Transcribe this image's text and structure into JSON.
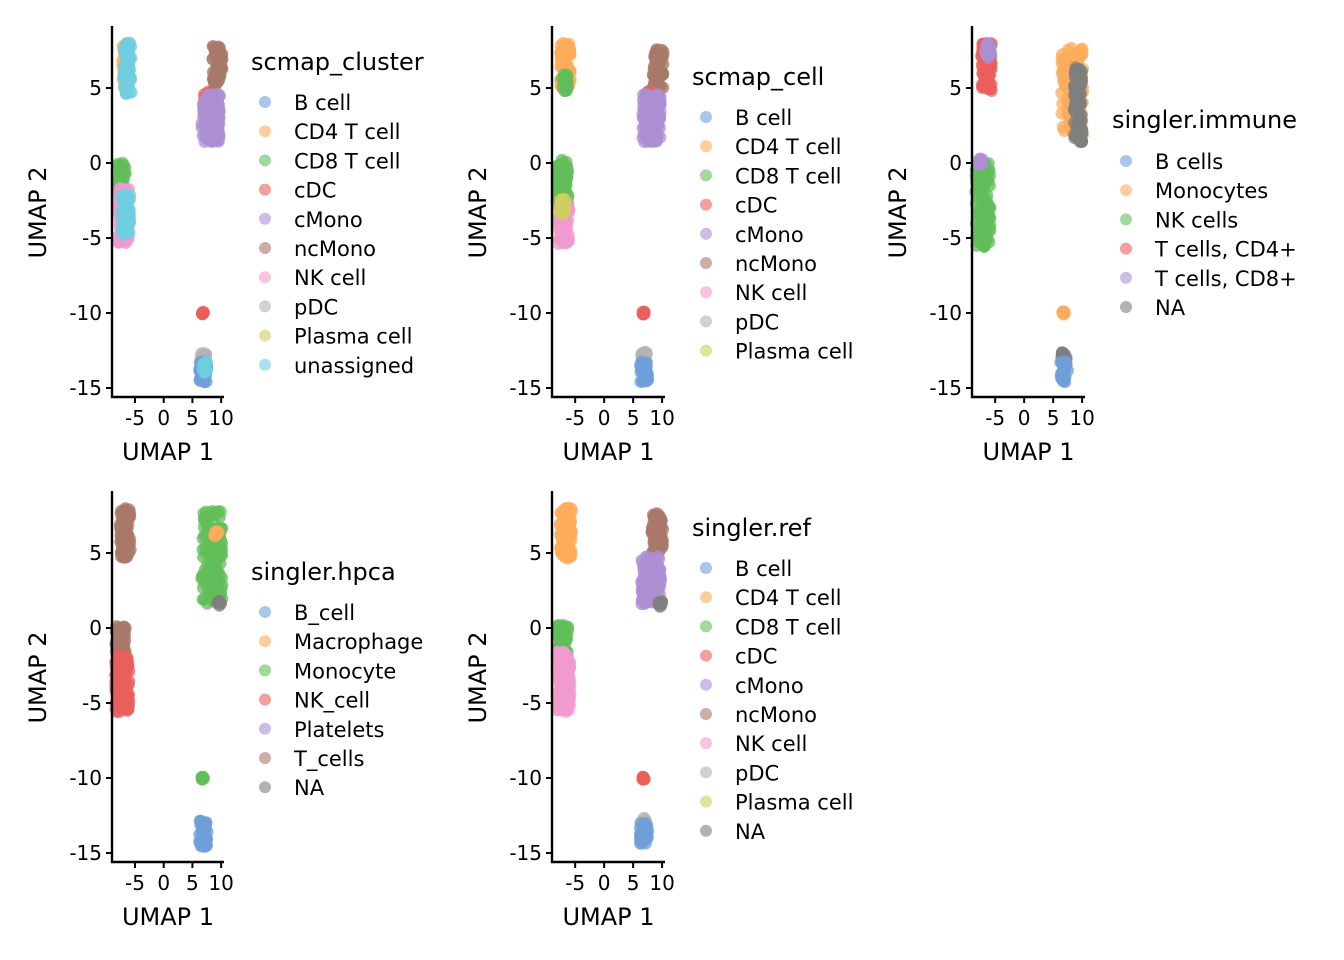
{
  "colors": {
    "blue": "#6f9fd8",
    "orange": "#fdab5b",
    "green": "#62be59",
    "red": "#ea5f5c",
    "purple": "#ac8fd3",
    "brown": "#a8786a",
    "pink": "#f09bcd",
    "gray": "#b3b3b3",
    "olive": "#cfcf5f",
    "cyan": "#6fcde0",
    "darkgray": "#7f7f7f"
  },
  "chart_data": [
    {
      "type": "scatter",
      "xlabel": "UMAP 1",
      "ylabel": "UMAP 2",
      "xlim": [
        -9,
        10.5
      ],
      "ylim": [
        -15.6,
        9
      ],
      "xticks": [
        {
          "v": -5,
          "label": "-5"
        },
        {
          "v": 0,
          "label": "0"
        },
        {
          "v": 5,
          "label": "5"
        },
        {
          "v": 10,
          "label": "10"
        }
      ],
      "yticks": [
        {
          "v": 5,
          "label": "5"
        },
        {
          "v": 0,
          "label": "0"
        },
        {
          "v": -5,
          "label": "-5"
        },
        {
          "v": -10,
          "label": "-10"
        },
        {
          "v": -15,
          "label": "-15"
        }
      ],
      "legend_title": "scmap_cluster",
      "legend": [
        {
          "label": "B cell",
          "color": "blue"
        },
        {
          "label": "CD4 T cell",
          "color": "orange"
        },
        {
          "label": "CD8 T cell",
          "color": "green"
        },
        {
          "label": "cDC",
          "color": "red"
        },
        {
          "label": "cMono",
          "color": "purple"
        },
        {
          "label": "ncMono",
          "color": "brown"
        },
        {
          "label": "NK cell",
          "color": "pink"
        },
        {
          "label": "pDC",
          "color": "gray"
        },
        {
          "label": "Plasma cell",
          "color": "olive"
        },
        {
          "label": "unassigned",
          "color": "cyan"
        }
      ],
      "clusters": [
        {
          "color": "orange",
          "x": [
            -7.2,
            -6.0
          ],
          "y": [
            4.8,
            8.0
          ]
        },
        {
          "color": "cyan",
          "x": [
            -7.0,
            -5.6
          ],
          "y": [
            4.6,
            8.0
          ]
        },
        {
          "color": "brown",
          "x": [
            8.5,
            10.2
          ],
          "y": [
            5.2,
            7.8
          ]
        },
        {
          "color": "red",
          "x": [
            7.0,
            9.0
          ],
          "y": [
            3.3,
            4.8
          ]
        },
        {
          "color": "purple",
          "x": [
            6.6,
            9.8
          ],
          "y": [
            1.4,
            4.6
          ]
        },
        {
          "color": "green",
          "x": [
            -8.0,
            -6.6
          ],
          "y": [
            -3.0,
            0.2
          ]
        },
        {
          "color": "pink",
          "x": [
            -8.0,
            -6.0
          ],
          "y": [
            -5.4,
            -1.6
          ]
        },
        {
          "color": "cyan",
          "x": [
            -7.4,
            -5.8
          ],
          "y": [
            -4.8,
            -2.0
          ]
        },
        {
          "color": "red",
          "x": [
            6.5,
            7.0
          ],
          "y": [
            -10.1,
            -9.9
          ]
        },
        {
          "color": "gray",
          "x": [
            6.4,
            7.4
          ],
          "y": [
            -13.4,
            -12.6
          ]
        },
        {
          "color": "blue",
          "x": [
            6.2,
            7.6
          ],
          "y": [
            -14.6,
            -13.2
          ]
        },
        {
          "color": "cyan",
          "x": [
            6.6,
            7.6
          ],
          "y": [
            -14.0,
            -13.2
          ]
        }
      ]
    },
    {
      "type": "scatter",
      "xlabel": "UMAP 1",
      "ylabel": "UMAP 2",
      "xlim": [
        -9,
        10.5
      ],
      "ylim": [
        -15.6,
        9
      ],
      "xticks": [
        {
          "v": -5,
          "label": "-5"
        },
        {
          "v": 0,
          "label": "0"
        },
        {
          "v": 5,
          "label": "5"
        },
        {
          "v": 10,
          "label": "10"
        }
      ],
      "yticks": [
        {
          "v": 5,
          "label": "5"
        },
        {
          "v": 0,
          "label": "0"
        },
        {
          "v": -5,
          "label": "-5"
        },
        {
          "v": -10,
          "label": "-10"
        },
        {
          "v": -15,
          "label": "-15"
        }
      ],
      "legend_title": "scmap_cell",
      "legend": [
        {
          "label": "B cell",
          "color": "blue"
        },
        {
          "label": "CD4 T cell",
          "color": "orange"
        },
        {
          "label": "CD8 T cell",
          "color": "green"
        },
        {
          "label": "cDC",
          "color": "red"
        },
        {
          "label": "cMono",
          "color": "purple"
        },
        {
          "label": "ncMono",
          "color": "brown"
        },
        {
          "label": "NK cell",
          "color": "pink"
        },
        {
          "label": "pDC",
          "color": "gray"
        },
        {
          "label": "Plasma cell",
          "color": "olive"
        }
      ],
      "clusters": [
        {
          "color": "orange",
          "x": [
            -7.6,
            -5.8
          ],
          "y": [
            5.0,
            8.0
          ]
        },
        {
          "color": "green",
          "x": [
            -7.4,
            -6.2
          ],
          "y": [
            4.8,
            6.0
          ]
        },
        {
          "color": "brown",
          "x": [
            8.4,
            10.2
          ],
          "y": [
            5.0,
            7.8
          ]
        },
        {
          "color": "red",
          "x": [
            7.2,
            8.6
          ],
          "y": [
            3.8,
            4.8
          ]
        },
        {
          "color": "purple",
          "x": [
            6.6,
            9.8
          ],
          "y": [
            1.4,
            4.6
          ]
        },
        {
          "color": "green",
          "x": [
            -8.2,
            -6.2
          ],
          "y": [
            -3.0,
            0.2
          ]
        },
        {
          "color": "pink",
          "x": [
            -8.0,
            -6.0
          ],
          "y": [
            -5.4,
            -2.6
          ]
        },
        {
          "color": "olive",
          "x": [
            -7.6,
            -6.6
          ],
          "y": [
            -3.4,
            -2.4
          ]
        },
        {
          "color": "red",
          "x": [
            6.6,
            7.0
          ],
          "y": [
            -10.1,
            -9.9
          ]
        },
        {
          "color": "gray",
          "x": [
            6.4,
            7.4
          ],
          "y": [
            -13.4,
            -12.6
          ]
        },
        {
          "color": "blue",
          "x": [
            6.2,
            7.6
          ],
          "y": [
            -14.6,
            -13.2
          ]
        }
      ]
    },
    {
      "type": "scatter",
      "xlabel": "UMAP 1",
      "ylabel": "UMAP 2",
      "xlim": [
        -9,
        10.5
      ],
      "ylim": [
        -15.6,
        9
      ],
      "xticks": [
        {
          "v": -5,
          "label": "-5"
        },
        {
          "v": 0,
          "label": "0"
        },
        {
          "v": 5,
          "label": "5"
        },
        {
          "v": 10,
          "label": "10"
        }
      ],
      "yticks": [
        {
          "v": 5,
          "label": "5"
        },
        {
          "v": 0,
          "label": "0"
        },
        {
          "v": -5,
          "label": "-5"
        },
        {
          "v": -10,
          "label": "-10"
        },
        {
          "v": -15,
          "label": "-15"
        }
      ],
      "legend_title": "singler.immune",
      "legend": [
        {
          "label": "B cells",
          "color": "blue"
        },
        {
          "label": "Monocytes",
          "color": "orange"
        },
        {
          "label": "NK cells",
          "color": "green"
        },
        {
          "label": "T cells, CD4+",
          "color": "red"
        },
        {
          "label": "T cells, CD8+",
          "color": "purple"
        },
        {
          "label": "NA",
          "color": "darkgray"
        }
      ],
      "clusters": [
        {
          "color": "red",
          "x": [
            -7.4,
            -5.6
          ],
          "y": [
            4.8,
            8.0
          ]
        },
        {
          "color": "purple",
          "x": [
            -6.8,
            -5.8
          ],
          "y": [
            7.0,
            8.0
          ]
        },
        {
          "color": "orange",
          "x": [
            6.4,
            10.2
          ],
          "y": [
            1.6,
            7.8
          ]
        },
        {
          "color": "darkgray",
          "x": [
            8.6,
            10.0
          ],
          "y": [
            1.4,
            6.4
          ]
        },
        {
          "color": "green",
          "x": [
            -8.4,
            -5.8
          ],
          "y": [
            -5.6,
            0.0
          ]
        },
        {
          "color": "purple",
          "x": [
            -8.0,
            -7.2
          ],
          "y": [
            -0.2,
            0.4
          ]
        },
        {
          "color": "orange",
          "x": [
            6.6,
            7.0
          ],
          "y": [
            -10.1,
            -9.9
          ]
        },
        {
          "color": "darkgray",
          "x": [
            6.4,
            7.4
          ],
          "y": [
            -13.4,
            -12.6
          ]
        },
        {
          "color": "blue",
          "x": [
            6.2,
            7.6
          ],
          "y": [
            -14.6,
            -13.2
          ]
        }
      ]
    },
    {
      "type": "scatter",
      "xlabel": "UMAP 1",
      "ylabel": "UMAP 2",
      "xlim": [
        -9,
        10.5
      ],
      "ylim": [
        -15.6,
        9
      ],
      "xticks": [
        {
          "v": -5,
          "label": "-5"
        },
        {
          "v": 0,
          "label": "0"
        },
        {
          "v": 5,
          "label": "5"
        },
        {
          "v": 10,
          "label": "10"
        }
      ],
      "yticks": [
        {
          "v": 5,
          "label": "5"
        },
        {
          "v": 0,
          "label": "0"
        },
        {
          "v": -5,
          "label": "-5"
        },
        {
          "v": -10,
          "label": "-10"
        },
        {
          "v": -15,
          "label": "-15"
        }
      ],
      "legend_title": "singler.hpca",
      "legend": [
        {
          "label": "B_cell",
          "color": "blue"
        },
        {
          "label": "Macrophage",
          "color": "orange"
        },
        {
          "label": "Monocyte",
          "color": "green"
        },
        {
          "label": "NK_cell",
          "color": "red"
        },
        {
          "label": "Platelets",
          "color": "purple"
        },
        {
          "label": "T_cells",
          "color": "brown"
        },
        {
          "label": "NA",
          "color": "darkgray"
        }
      ],
      "clusters": [
        {
          "color": "brown",
          "x": [
            -7.6,
            -5.8
          ],
          "y": [
            4.6,
            8.0
          ]
        },
        {
          "color": "green",
          "x": [
            6.6,
            10.2
          ],
          "y": [
            1.6,
            7.8
          ]
        },
        {
          "color": "orange",
          "x": [
            8.8,
            9.6
          ],
          "y": [
            6.0,
            6.6
          ]
        },
        {
          "color": "darkgray",
          "x": [
            9.4,
            10.0
          ],
          "y": [
            1.4,
            1.8
          ]
        },
        {
          "color": "brown",
          "x": [
            -8.4,
            -6.6
          ],
          "y": [
            -2.8,
            0.2
          ]
        },
        {
          "color": "red",
          "x": [
            -8.4,
            -6.0
          ],
          "y": [
            -5.6,
            -1.8
          ]
        },
        {
          "color": "green",
          "x": [
            6.6,
            7.0
          ],
          "y": [
            -10.1,
            -9.9
          ]
        },
        {
          "color": "blue",
          "x": [
            6.2,
            7.6
          ],
          "y": [
            -14.6,
            -12.8
          ]
        }
      ]
    },
    {
      "type": "scatter",
      "xlabel": "UMAP 1",
      "ylabel": "UMAP 2",
      "xlim": [
        -9,
        10.5
      ],
      "ylim": [
        -15.6,
        9
      ],
      "xticks": [
        {
          "v": -5,
          "label": "-5"
        },
        {
          "v": 0,
          "label": "0"
        },
        {
          "v": 5,
          "label": "5"
        },
        {
          "v": 10,
          "label": "10"
        }
      ],
      "yticks": [
        {
          "v": 5,
          "label": "5"
        },
        {
          "v": 0,
          "label": "0"
        },
        {
          "v": -5,
          "label": "-5"
        },
        {
          "v": -10,
          "label": "-10"
        },
        {
          "v": -15,
          "label": "-15"
        }
      ],
      "legend_title": "singler.ref",
      "legend": [
        {
          "label": "B cell",
          "color": "blue"
        },
        {
          "label": "CD4 T cell",
          "color": "orange"
        },
        {
          "label": "CD8 T cell",
          "color": "green"
        },
        {
          "label": "cDC",
          "color": "red"
        },
        {
          "label": "cMono",
          "color": "purple"
        },
        {
          "label": "ncMono",
          "color": "brown"
        },
        {
          "label": "NK cell",
          "color": "pink"
        },
        {
          "label": "pDC",
          "color": "gray"
        },
        {
          "label": "Plasma cell",
          "color": "olive"
        },
        {
          "label": "NA",
          "color": "darkgray"
        }
      ],
      "clusters": [
        {
          "color": "orange",
          "x": [
            -7.6,
            -5.6
          ],
          "y": [
            4.6,
            8.0
          ]
        },
        {
          "color": "brown",
          "x": [
            8.2,
            10.2
          ],
          "y": [
            5.0,
            7.8
          ]
        },
        {
          "color": "purple",
          "x": [
            6.4,
            9.8
          ],
          "y": [
            1.6,
            4.8
          ]
        },
        {
          "color": "darkgray",
          "x": [
            9.4,
            10.0
          ],
          "y": [
            1.4,
            1.8
          ]
        },
        {
          "color": "green",
          "x": [
            -8.2,
            -6.2
          ],
          "y": [
            -2.6,
            0.2
          ]
        },
        {
          "color": "pink",
          "x": [
            -8.2,
            -5.8
          ],
          "y": [
            -5.6,
            -1.6
          ]
        },
        {
          "color": "red",
          "x": [
            6.6,
            7.0
          ],
          "y": [
            -10.1,
            -9.9
          ]
        },
        {
          "color": "gray",
          "x": [
            6.4,
            7.4
          ],
          "y": [
            -13.4,
            -12.6
          ]
        },
        {
          "color": "blue",
          "x": [
            6.2,
            7.6
          ],
          "y": [
            -14.6,
            -13.0
          ]
        }
      ]
    }
  ]
}
